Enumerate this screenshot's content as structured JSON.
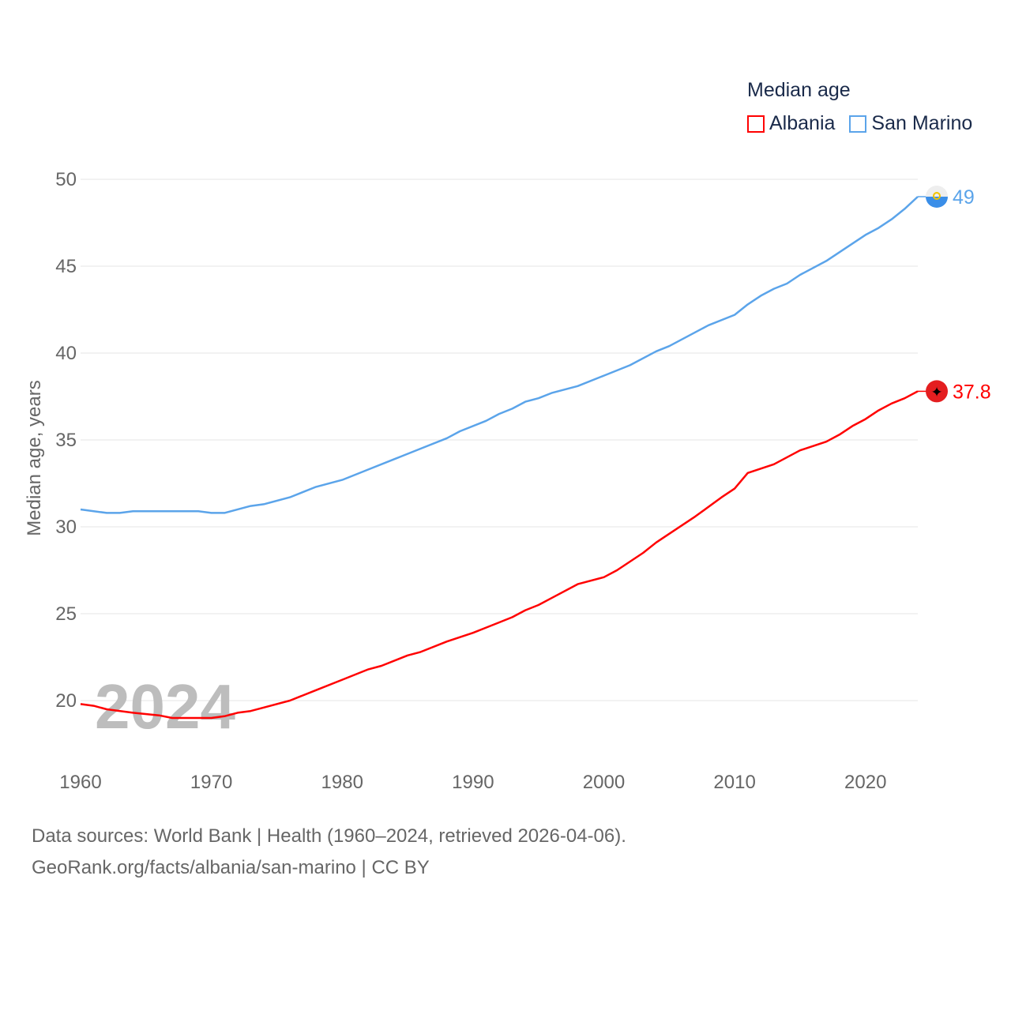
{
  "chart_data": {
    "type": "line",
    "title": "Median age",
    "xlabel": "",
    "ylabel": "Median age, years",
    "xlim": [
      1960,
      2024
    ],
    "ylim": [
      17,
      50
    ],
    "yticks": [
      20,
      25,
      30,
      35,
      40,
      45,
      50
    ],
    "xticks": [
      1960,
      1970,
      1980,
      1990,
      2000,
      2010,
      2020
    ],
    "grid": true,
    "legend_position": "top-right",
    "watermark_year": "2024",
    "series": [
      {
        "name": "Albania",
        "color": "#ff0000",
        "end_label": "37.8",
        "x": [
          1960,
          1961,
          1962,
          1964,
          1966,
          1967,
          1970,
          1971,
          1972,
          1973,
          1974,
          1976,
          1978,
          1980,
          1982,
          1983,
          1985,
          1986,
          1988,
          1990,
          1991,
          1993,
          1994,
          1995,
          1996,
          1998,
          2000,
          2001,
          2003,
          2004,
          2005,
          2007,
          2009,
          2010,
          2011,
          2013,
          2015,
          2017,
          2018,
          2019,
          2020,
          2021,
          2022,
          2023,
          2024
        ],
        "y": [
          19.8,
          19.7,
          19.5,
          19.3,
          19.15,
          19.0,
          19.0,
          19.1,
          19.3,
          19.4,
          19.6,
          20.0,
          20.6,
          21.2,
          21.8,
          22.0,
          22.6,
          22.8,
          23.4,
          23.9,
          24.2,
          24.8,
          25.2,
          25.5,
          25.9,
          26.7,
          27.1,
          27.5,
          28.5,
          29.1,
          29.6,
          30.6,
          31.7,
          32.2,
          33.1,
          33.6,
          34.4,
          34.9,
          35.3,
          35.8,
          36.2,
          36.7,
          37.1,
          37.4,
          37.8
        ]
      },
      {
        "name": "San Marino",
        "color": "#5ba4ea",
        "end_label": "49",
        "x": [
          1960,
          1962,
          1963,
          1964,
          1969,
          1970,
          1971,
          1973,
          1974,
          1976,
          1978,
          1980,
          1982,
          1984,
          1986,
          1988,
          1989,
          1991,
          1992,
          1993,
          1994,
          1995,
          1996,
          1998,
          2000,
          2002,
          2004,
          2005,
          2008,
          2010,
          2011,
          2012,
          2013,
          2014,
          2015,
          2017,
          2019,
          2020,
          2021,
          2022,
          2023,
          2024
        ],
        "y": [
          31.0,
          30.8,
          30.8,
          30.9,
          30.9,
          30.8,
          30.8,
          31.2,
          31.3,
          31.7,
          32.3,
          32.7,
          33.3,
          33.9,
          34.5,
          35.1,
          35.5,
          36.1,
          36.5,
          36.8,
          37.2,
          37.4,
          37.7,
          38.1,
          38.7,
          39.3,
          40.1,
          40.4,
          41.6,
          42.2,
          42.8,
          43.3,
          43.7,
          44.0,
          44.5,
          45.3,
          46.3,
          46.8,
          47.2,
          47.7,
          48.3,
          49.0
        ]
      }
    ]
  },
  "footer": {
    "line1": "Data sources: World Bank | Health (1960–2024, retrieved 2026-04-06).",
    "line2": "GeoRank.org/facts/albania/san-marino | CC BY"
  }
}
